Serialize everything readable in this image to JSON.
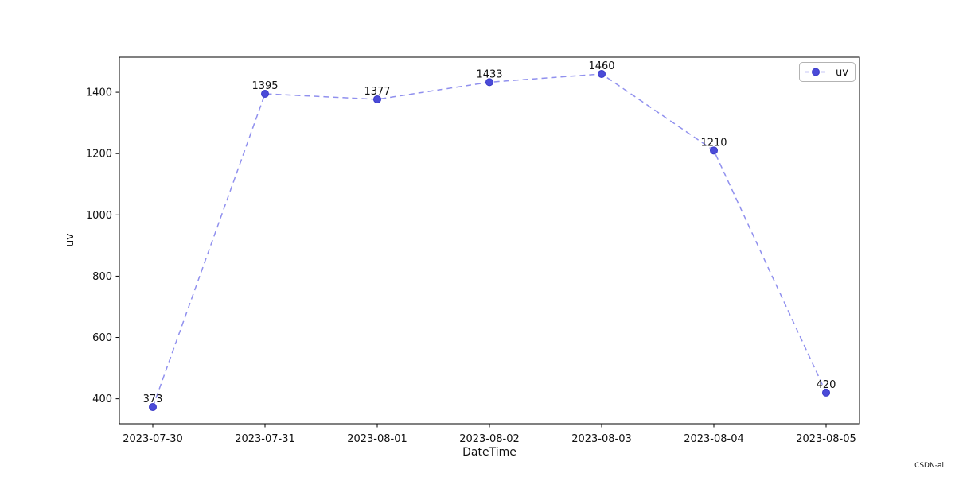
{
  "figure": {
    "background": "#ffffff"
  },
  "chart_data": {
    "type": "line",
    "title": "",
    "xlabel": "DateTime",
    "ylabel": "uv",
    "categories": [
      "2023-07-30",
      "2023-07-31",
      "2023-08-01",
      "2023-08-02",
      "2023-08-03",
      "2023-08-04",
      "2023-08-05"
    ],
    "series": [
      {
        "name": "uv",
        "values": [
          373,
          1395,
          1377,
          1433,
          1460,
          1210,
          420
        ],
        "line_style": "dashed",
        "marker": "circle",
        "line_color": "#9090ee",
        "marker_color": "#4b4bd8",
        "marker_edge_color": "#3a3ac8",
        "point_label_color": "#ff0000",
        "show_point_labels": true
      }
    ],
    "yticks": [
      400,
      600,
      800,
      1000,
      1200,
      1400
    ],
    "ylim": [
      318.65,
      1514.35
    ],
    "grid": false,
    "legend": {
      "position": "upper right",
      "entries": [
        "uv"
      ]
    }
  },
  "axis": {
    "frame_color": "#000000",
    "tick_label_color": "#141414"
  },
  "legend_box": {
    "border_color": "#b3b3b3",
    "fill_color": "#ffffff"
  },
  "watermark": {
    "text": "CSDN-ai",
    "color": "#c6c6cc"
  }
}
